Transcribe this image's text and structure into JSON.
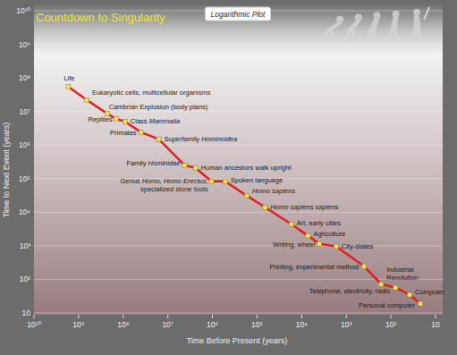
{
  "chart_data": {
    "type": "line",
    "title": "Countdown to Singularity",
    "subtitle": "Logarithmic Plot",
    "x_label": "Time Before Present (years)",
    "y_label": "Time to Next Event (years)",
    "log": true,
    "grid": true,
    "marker": "square",
    "color": "#e0201c",
    "xlim": [
      10000000000.0,
      10
    ],
    "ylim": [
      10,
      10000000000.0
    ],
    "xticks": [
      {
        "value": 10000000000.0,
        "label": "10¹⁰"
      },
      {
        "value": 1000000000.0,
        "label": "10⁹"
      },
      {
        "value": 100000000.0,
        "label": "10⁸"
      },
      {
        "value": 10000000.0,
        "label": "10⁷"
      },
      {
        "value": 1000000.0,
        "label": "10⁶"
      },
      {
        "value": 100000.0,
        "label": "10⁵"
      },
      {
        "value": 10000.0,
        "label": "10⁴"
      },
      {
        "value": 1000.0,
        "label": "10³"
      },
      {
        "value": 100,
        "label": "10²"
      },
      10
    ],
    "yticks": [
      10,
      {
        "value": 100,
        "label": "10²"
      },
      {
        "value": 1000.0,
        "label": "10³"
      },
      {
        "value": 10000.0,
        "label": "10⁴"
      },
      {
        "value": 100000.0,
        "label": "10⁵"
      },
      {
        "value": 1000000.0,
        "label": "10⁶"
      },
      {
        "value": 10000000.0,
        "label": "10⁷"
      },
      {
        "value": 100000000.0,
        "label": "10⁸"
      },
      {
        "value": 1000000000.0,
        "label": "10⁹"
      },
      {
        "value": 10000000000.0,
        "label": "10¹⁰"
      }
    ],
    "labels": [
      "Life",
      "Eukaryotic cells, multicellular organisms",
      "Cambrian Explosion (body plans)",
      "Reptiles",
      "Class Mammalia",
      "Primates",
      "Superfamily Hominoidea",
      "Family Hominidae",
      "Human ancestors walk upright",
      "Genus Homo, Homo Erectus, specialized stone tools",
      "Spoken language",
      "Homo sapiens",
      "Homo sapiens sapiens",
      "Art, early cities",
      "Agriculture",
      "Writing, wheel",
      "City-states",
      "Printing, experimental method",
      "Industrial Revolution",
      "Telephone, electricity, radio",
      "Computer",
      "Personal computer"
    ],
    "x": [
      1700000000,
      660000000,
      230000000,
      145000000,
      91000000,
      40000000,
      16000000,
      4200000,
      2400000,
      1050000,
      520000,
      170000,
      66000,
      17000,
      7200,
      4000,
      1700,
      400,
      165,
      79,
      38,
      22
    ],
    "values": [
      55000000,
      22000000,
      8700000,
      6000000,
      5000000,
      2400000,
      1500000,
      250000,
      210000,
      83000,
      83000,
      31000,
      14000,
      4400,
      2000,
      1150,
      960,
      245,
      72,
      57,
      35,
      19
    ]
  }
}
